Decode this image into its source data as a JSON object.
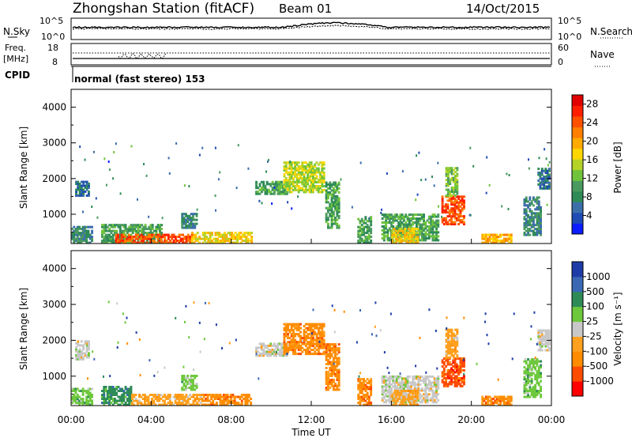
{
  "header": {
    "station": "Zhongshan Station (fitACF)",
    "beam": "Beam 01",
    "date": "14/Oct/2015"
  },
  "top_panel": {
    "left_label": "N.Sky",
    "left_ticks": [
      "10^5",
      "10^0"
    ],
    "right_label": "N.Search",
    "right_ticks": [
      "10^5",
      "10^0"
    ]
  },
  "freq_panel": {
    "left_label_1": "Freq.",
    "left_label_2": "[MHz]",
    "left_ticks": [
      "18",
      "8"
    ],
    "right_label": "Nave",
    "right_ticks": [
      "60",
      "0"
    ],
    "cpid_label": "CPID",
    "cpid_text": "normal (fast stereo) 153"
  },
  "palettes": {
    "power": [
      "#0a1eff",
      "#1e4bb4",
      "#3c6eaa",
      "#2e8b57",
      "#4a9a60",
      "#6fc43c",
      "#b4d228",
      "#ffd700",
      "#ffaa00",
      "#ff7f00",
      "#ff5000",
      "#ff1e00",
      "#e10000"
    ],
    "velocity": [
      "#ff0000",
      "#ff4b00",
      "#ff8c00",
      "#ffa01e",
      "#c8c8c8",
      "#6ec83c",
      "#2e8b57",
      "#3a68b4",
      "#1e3ca8"
    ]
  },
  "chart_data": [
    {
      "type": "heatmap",
      "name": "power",
      "ylabel": "Slant Range [km]",
      "yticks": [
        1000,
        2000,
        3000,
        4000
      ],
      "ylim": [
        180,
        4500
      ],
      "xlim": [
        0,
        24
      ],
      "colorbar_label": "Power [dB]",
      "colorbar_ticks": [
        4,
        8,
        12,
        16,
        20,
        24,
        28
      ],
      "colorbar_range": [
        0,
        30
      ],
      "blobs": [
        {
          "t0": 0.0,
          "t1": 1.0,
          "r0": 180,
          "r1": 650,
          "v": 7
        },
        {
          "t0": 0.2,
          "t1": 0.9,
          "r0": 1500,
          "r1": 1900,
          "v": 6
        },
        {
          "t0": 1.5,
          "t1": 4.5,
          "r0": 180,
          "r1": 700,
          "v": 9
        },
        {
          "t0": 2.2,
          "t1": 6.0,
          "r0": 180,
          "r1": 430,
          "v": 26
        },
        {
          "t0": 6.0,
          "t1": 9.0,
          "r0": 180,
          "r1": 480,
          "v": 18
        },
        {
          "t0": 5.5,
          "t1": 6.3,
          "r0": 600,
          "r1": 1000,
          "v": 8
        },
        {
          "t0": 9.2,
          "t1": 10.8,
          "r0": 1550,
          "r1": 1900,
          "v": 9
        },
        {
          "t0": 10.6,
          "t1": 12.6,
          "r0": 1600,
          "r1": 2450,
          "v": 16
        },
        {
          "t0": 12.7,
          "t1": 13.4,
          "r0": 600,
          "r1": 1900,
          "v": 11
        },
        {
          "t0": 14.3,
          "t1": 15.0,
          "r0": 180,
          "r1": 900,
          "v": 10
        },
        {
          "t0": 15.5,
          "t1": 18.3,
          "r0": 250,
          "r1": 1000,
          "v": 10
        },
        {
          "t0": 16.0,
          "t1": 17.3,
          "r0": 180,
          "r1": 600,
          "v": 17
        },
        {
          "t0": 18.5,
          "t1": 19.6,
          "r0": 700,
          "r1": 1500,
          "v": 24
        },
        {
          "t0": 18.7,
          "t1": 19.3,
          "r0": 1500,
          "r1": 2300,
          "v": 13
        },
        {
          "t0": 20.5,
          "t1": 22.0,
          "r0": 180,
          "r1": 450,
          "v": 20
        },
        {
          "t0": 22.6,
          "t1": 23.5,
          "r0": 400,
          "r1": 1500,
          "v": 8
        },
        {
          "t0": 23.3,
          "t1": 23.9,
          "r0": 1700,
          "r1": 2300,
          "v": 6
        }
      ]
    },
    {
      "type": "heatmap",
      "name": "velocity",
      "ylabel": "Slant Range [km]",
      "yticks": [
        1000,
        2000,
        3000,
        4000
      ],
      "ylim": [
        180,
        4500
      ],
      "xlim": [
        0,
        24
      ],
      "xlabel": "Time UT",
      "xticks": [
        "00:00",
        "04:00",
        "08:00",
        "12:00",
        "16:00",
        "20:00",
        "00:00"
      ],
      "colorbar_label": "Velocity [m s⁻¹]",
      "colorbar_ticks": [
        "-1000",
        "-500",
        "-100",
        "-25",
        "25",
        "100",
        "500",
        "1000"
      ],
      "blobs": [
        {
          "t0": 0.0,
          "t1": 1.0,
          "r0": 180,
          "r1": 650,
          "v": 5
        },
        {
          "t0": 0.2,
          "t1": 0.9,
          "r0": 1450,
          "r1": 1950,
          "v": 4
        },
        {
          "t0": 1.5,
          "t1": 3.0,
          "r0": 180,
          "r1": 700,
          "v": 6
        },
        {
          "t0": 3.0,
          "t1": 6.5,
          "r0": 180,
          "r1": 500,
          "v": 3
        },
        {
          "t0": 6.5,
          "t1": 9.0,
          "r0": 180,
          "r1": 500,
          "v": 2
        },
        {
          "t0": 5.5,
          "t1": 6.3,
          "r0": 600,
          "r1": 1000,
          "v": 5
        },
        {
          "t0": 9.2,
          "t1": 10.8,
          "r0": 1550,
          "r1": 1900,
          "v": 4
        },
        {
          "t0": 10.6,
          "t1": 12.6,
          "r0": 1600,
          "r1": 2450,
          "v": 2
        },
        {
          "t0": 12.7,
          "t1": 13.4,
          "r0": 600,
          "r1": 1900,
          "v": 2
        },
        {
          "t0": 14.3,
          "t1": 15.0,
          "r0": 180,
          "r1": 900,
          "v": 2
        },
        {
          "t0": 15.5,
          "t1": 18.3,
          "r0": 250,
          "r1": 1000,
          "v": 4
        },
        {
          "t0": 16.0,
          "t1": 17.3,
          "r0": 180,
          "r1": 600,
          "v": 3
        },
        {
          "t0": 18.5,
          "t1": 19.6,
          "r0": 700,
          "r1": 1500,
          "v": 1
        },
        {
          "t0": 18.7,
          "t1": 19.3,
          "r0": 1500,
          "r1": 2300,
          "v": 3
        },
        {
          "t0": 20.5,
          "t1": 22.0,
          "r0": 180,
          "r1": 450,
          "v": 2
        },
        {
          "t0": 22.6,
          "t1": 23.5,
          "r0": 400,
          "r1": 1500,
          "v": 5
        },
        {
          "t0": 23.3,
          "t1": 23.9,
          "r0": 1700,
          "r1": 2300,
          "v": 4
        }
      ]
    }
  ]
}
